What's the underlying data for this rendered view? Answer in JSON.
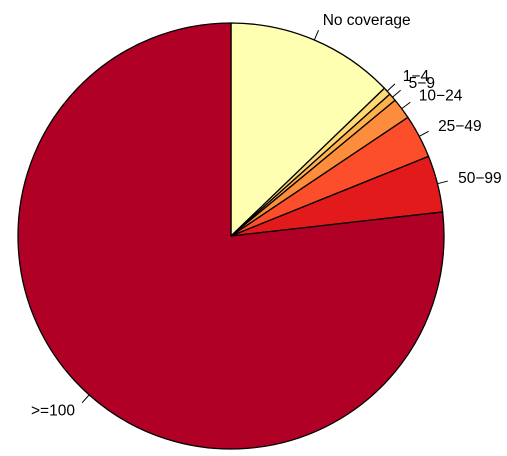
{
  "chart_data": {
    "type": "pie",
    "title": "",
    "categories": [
      "No coverage",
      "1-4",
      "5-9",
      "10-24",
      "25-49",
      "50-99",
      ">=100"
    ],
    "labels": [
      "No coverage",
      "1−4",
      "5−9",
      "10−24",
      "25−49",
      "50−99",
      ">=100"
    ],
    "values": [
      12.8,
      0.6,
      0.6,
      1.6,
      3.3,
      4.3,
      76.8
    ],
    "colors": [
      "#FFFFB2",
      "#FED976",
      "#FEB24C",
      "#FD8D3C",
      "#FC4E2A",
      "#E31A1C",
      "#B10026"
    ],
    "start_angle_deg": 90,
    "direction": "clockwise",
    "legend": "none"
  }
}
